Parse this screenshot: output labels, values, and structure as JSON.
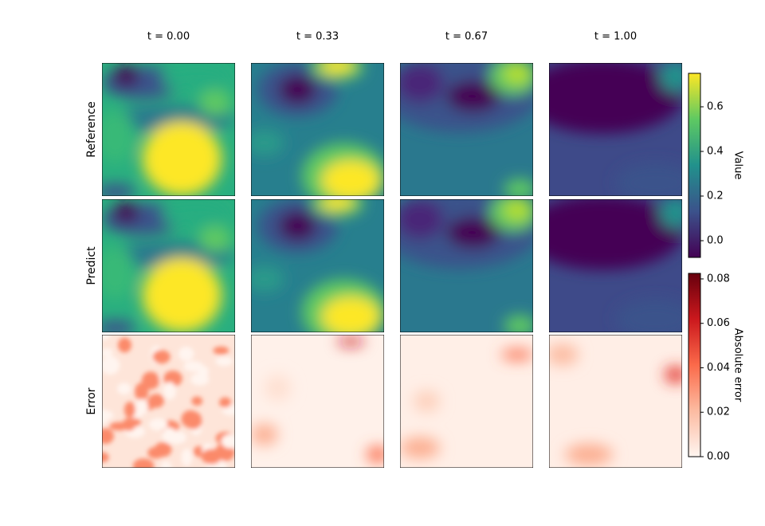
{
  "chart_data": {
    "type": "heatmap",
    "columns": [
      "t = 0.00",
      "t = 0.33",
      "t = 0.67",
      "t = 1.00"
    ],
    "rows": [
      "Reference",
      "Predict",
      "Error"
    ],
    "colorbars": [
      {
        "label": "Value",
        "colormap": "viridis",
        "lim": [
          -0.075,
          0.75
        ],
        "ticks": [
          {
            "value": 0.0,
            "label": "0.0"
          },
          {
            "value": 0.2,
            "label": "0.2"
          },
          {
            "value": 0.4,
            "label": "0.4"
          },
          {
            "value": 0.6,
            "label": "0.6"
          }
        ]
      },
      {
        "label": "Absolute error",
        "colormap": "reds",
        "lim": [
          0,
          0.0825
        ],
        "ticks": [
          {
            "value": 0.0,
            "label": "0.00"
          },
          {
            "value": 0.02,
            "label": "0.02"
          },
          {
            "value": 0.04,
            "label": "0.04"
          },
          {
            "value": 0.06,
            "label": "0.06"
          },
          {
            "value": 0.08,
            "label": "0.08"
          }
        ]
      }
    ]
  }
}
